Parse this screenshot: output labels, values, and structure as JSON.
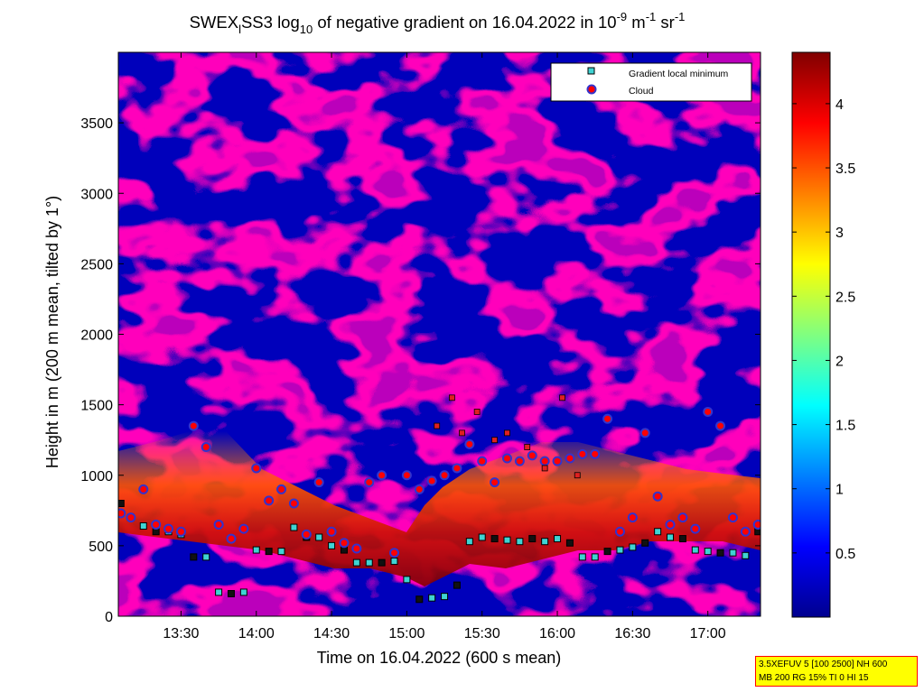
{
  "chart_data": {
    "type": "heatmap",
    "title": {
      "prefix": "SWEX",
      "subscript": "l",
      "mid": "SS3 log",
      "log_base": "10",
      "rest": " of negative gradient on 16.04.2022 in 10",
      "unit_exp1": "-9",
      "unit_mid": " m",
      "unit_exp2": "-1",
      "unit_mid2": " sr",
      "unit_exp3": "-1"
    },
    "xlabel": "Time on 16.04.2022 (600 s mean)",
    "ylabel": "Height in m (200 m mean, tilted by 1°)",
    "x_ticks": [
      "13:30",
      "14:00",
      "14:30",
      "15:00",
      "15:30",
      "16:00",
      "16:30",
      "17:00"
    ],
    "x_tick_minutes": [
      810,
      840,
      870,
      900,
      930,
      960,
      990,
      1020
    ],
    "xlim_minutes": [
      785,
      1041
    ],
    "y_ticks": [
      "0",
      "500",
      "1000",
      "1500",
      "2000",
      "2500",
      "3000",
      "3500"
    ],
    "y_tick_values": [
      0,
      500,
      1000,
      1500,
      2000,
      2500,
      3000,
      3500
    ],
    "ylim": [
      0,
      4000
    ],
    "colorbar": {
      "ticks": [
        "0.5",
        "1",
        "1.5",
        "2",
        "2.5",
        "3",
        "3.5",
        "4"
      ],
      "tick_values": [
        0.5,
        1,
        1.5,
        2,
        2.5,
        3,
        3.5,
        4
      ],
      "range": [
        0,
        4.4
      ],
      "colormap": "jet"
    },
    "legend": {
      "position": "top-right",
      "entries": [
        {
          "label": "Gradient local minimum",
          "marker": "square",
          "color": "#3fd3d3"
        },
        {
          "label": "Cloud",
          "marker": "circle",
          "color": "#ff0000"
        }
      ]
    },
    "gradient_minimum_series": {
      "time_minutes": [
        786,
        790,
        795,
        800,
        805,
        810,
        815,
        820,
        825,
        830,
        835,
        840,
        845,
        850,
        855,
        860,
        865,
        870,
        875,
        880,
        885,
        890,
        895,
        900,
        905,
        910,
        915,
        920,
        925,
        930,
        935,
        940,
        945,
        950,
        955,
        960,
        965,
        970,
        975,
        980,
        985,
        990,
        995,
        1000,
        1005,
        1010,
        1015,
        1020,
        1025,
        1030,
        1035,
        1040
      ],
      "height_m": [
        800,
        700,
        640,
        600,
        600,
        580,
        420,
        420,
        170,
        160,
        170,
        470,
        460,
        460,
        630,
        560,
        560,
        500,
        470,
        380,
        380,
        380,
        390,
        260,
        120,
        130,
        140,
        220,
        530,
        560,
        550,
        540,
        530,
        550,
        530,
        550,
        520,
        420,
        420,
        460,
        470,
        490,
        520,
        600,
        560,
        550,
        470,
        460,
        450,
        450,
        430,
        600
      ]
    },
    "cloud_series": {
      "time_minutes": [
        786,
        790,
        795,
        800,
        805,
        810,
        815,
        820,
        825,
        830,
        835,
        840,
        845,
        850,
        855,
        860,
        865,
        870,
        875,
        880,
        885,
        890,
        895,
        900,
        905,
        910,
        915,
        920,
        925,
        930,
        935,
        940,
        945,
        950,
        955,
        960,
        965,
        970,
        975,
        980,
        985,
        990,
        995,
        1000,
        1005,
        1010,
        1015,
        1020,
        1025,
        1030,
        1035,
        1040
      ],
      "height_m": [
        730,
        700,
        900,
        650,
        620,
        600,
        1350,
        1200,
        650,
        550,
        620,
        1050,
        820,
        900,
        800,
        580,
        950,
        600,
        520,
        480,
        950,
        1000,
        450,
        1000,
        900,
        960,
        1000,
        1050,
        1220,
        1100,
        950,
        1120,
        1100,
        1140,
        1100,
        1100,
        1120,
        1150,
        1150,
        1400,
        600,
        700,
        1300,
        850,
        650,
        700,
        620,
        1450,
        1350,
        700,
        600,
        650
      ]
    },
    "upper_cloud_markers": {
      "time_minutes": [
        912,
        918,
        922,
        928,
        935,
        940,
        948,
        955,
        962,
        968
      ],
      "height_m": [
        1350,
        1550,
        1300,
        1450,
        1250,
        1300,
        1200,
        1050,
        1550,
        1000
      ]
    }
  },
  "footer_stamp": {
    "line1": "3.5XEFUV 5 [100 2500] NH 600",
    "line2": "MB 200 RG 15% TI 0 HI 15"
  }
}
